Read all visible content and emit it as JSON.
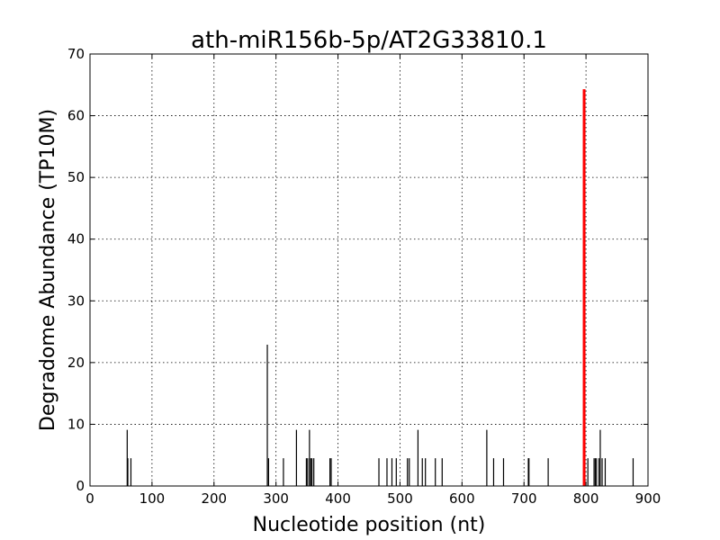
{
  "chart_data": {
    "type": "bar",
    "title": "ath-miR156b-5p/AT2G33810.1",
    "xlabel": "Nucleotide position (nt)",
    "ylabel": "Degradome Abundance (TP10M)",
    "xlim": [
      0,
      900
    ],
    "ylim": [
      0,
      70
    ],
    "xticks": [
      0,
      100,
      200,
      300,
      400,
      500,
      600,
      700,
      800,
      900
    ],
    "yticks": [
      0,
      10,
      20,
      30,
      40,
      50,
      60,
      70
    ],
    "grid": true,
    "series": [
      {
        "color": "#000000",
        "points": [
          [
            60,
            9.1
          ],
          [
            61,
            4.5
          ],
          [
            66,
            4.5
          ],
          [
            286,
            22.9
          ],
          [
            288,
            4.5
          ],
          [
            312,
            4.5
          ],
          [
            333,
            9.1
          ],
          [
            349,
            4.5
          ],
          [
            351,
            4.5
          ],
          [
            354,
            9.1
          ],
          [
            356,
            4.5
          ],
          [
            358,
            4.5
          ],
          [
            361,
            4.5
          ],
          [
            387,
            4.5
          ],
          [
            389,
            4.5
          ],
          [
            466,
            4.5
          ],
          [
            479,
            4.5
          ],
          [
            487,
            4.5
          ],
          [
            494,
            4.5
          ],
          [
            512,
            4.5
          ],
          [
            515,
            4.5
          ],
          [
            529,
            9.1
          ],
          [
            536,
            4.5
          ],
          [
            541,
            4.5
          ],
          [
            557,
            4.5
          ],
          [
            568,
            4.5
          ],
          [
            640,
            9.1
          ],
          [
            651,
            4.5
          ],
          [
            667,
            4.5
          ],
          [
            707,
            4.5
          ],
          [
            708,
            4.5
          ],
          [
            739,
            4.5
          ],
          [
            803,
            4.5
          ],
          [
            813,
            4.5
          ],
          [
            815,
            4.5
          ],
          [
            817,
            4.5
          ],
          [
            821,
            4.5
          ],
          [
            823,
            9.1
          ],
          [
            826,
            4.5
          ],
          [
            831,
            4.5
          ],
          [
            876,
            4.5
          ]
        ]
      },
      {
        "color": "#ff0000",
        "points": [
          [
            797,
            64.3
          ]
        ]
      }
    ]
  }
}
